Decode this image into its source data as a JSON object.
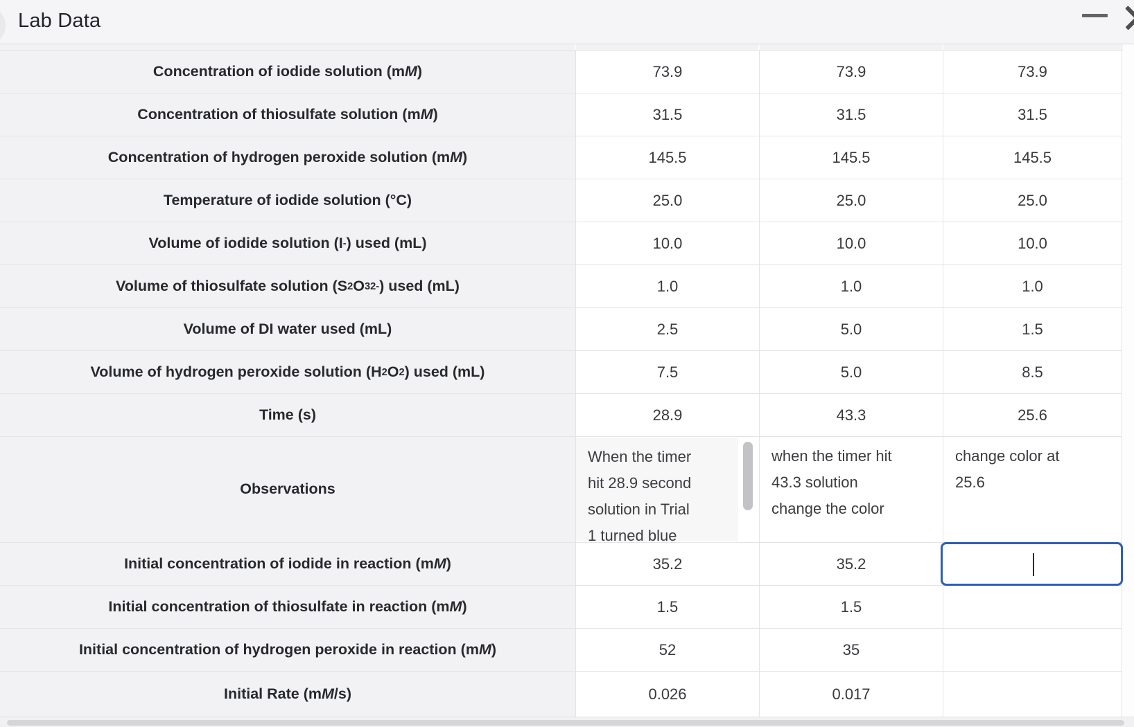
{
  "window": {
    "title": "Lab Data",
    "controls": {
      "minimize_label": "minimize",
      "close_label": "close"
    }
  },
  "table": {
    "trial_columns": 3,
    "rows": [
      {
        "label": "Concentration of iodide solution (m<i>M</i>)",
        "values": [
          "73.9",
          "73.9",
          "73.9"
        ]
      },
      {
        "label": "Concentration of thiosulfate solution (m<i>M</i>)",
        "values": [
          "31.5",
          "31.5",
          "31.5"
        ]
      },
      {
        "label": "Concentration of hydrogen peroxide solution (m<i>M</i>)",
        "values": [
          "145.5",
          "145.5",
          "145.5"
        ]
      },
      {
        "label": "Temperature of iodide solution (°C)",
        "values": [
          "25.0",
          "25.0",
          "25.0"
        ]
      },
      {
        "label": "Volume of iodide solution (I<sup>-</sup>) used (mL)",
        "values": [
          "10.0",
          "10.0",
          "10.0"
        ]
      },
      {
        "label": "Volume of thiosulfate solution (S<sub>2</sub>O<sub>3</sub><sup>2-</sup>) used (mL)",
        "values": [
          "1.0",
          "1.0",
          "1.0"
        ]
      },
      {
        "label": "Volume of DI water used (mL)",
        "values": [
          "2.5",
          "5.0",
          "1.5"
        ]
      },
      {
        "label": "Volume of hydrogen peroxide solution (H<sub>2</sub>O<sub>2</sub>) used (mL)",
        "values": [
          "7.5",
          "5.0",
          "8.5"
        ]
      },
      {
        "label": "Time (s)",
        "values": [
          "28.9",
          "43.3",
          "25.6"
        ]
      },
      {
        "label": "Observations",
        "type": "observations",
        "values": [
          "When the timer\nhit 28.9 second\nsolution in Trial\n1 turned blue",
          "when the timer hit\n43.3 solution\nchange the color",
          "change color at\n25.6"
        ]
      },
      {
        "label": "Initial concentration of iodide in reaction (m<i>M</i>)",
        "values": [
          "35.2",
          "35.2",
          ""
        ],
        "focused_input_col": 2
      },
      {
        "label": "Initial concentration of thiosulfate in reaction (m<i>M</i>)",
        "values": [
          "1.5",
          "1.5",
          ""
        ]
      },
      {
        "label": "Initial concentration of hydrogen peroxide in reaction (m<i>M</i>)",
        "values": [
          "52",
          "35",
          ""
        ]
      },
      {
        "label": "Initial Rate (m<i>M</i>/s)",
        "values": [
          "0.026",
          "0.017",
          ""
        ]
      }
    ]
  },
  "colors": {
    "focus_border": "#2e5db4",
    "label_background": "#f2f2f4",
    "grid_line": "#e4e4e6"
  }
}
